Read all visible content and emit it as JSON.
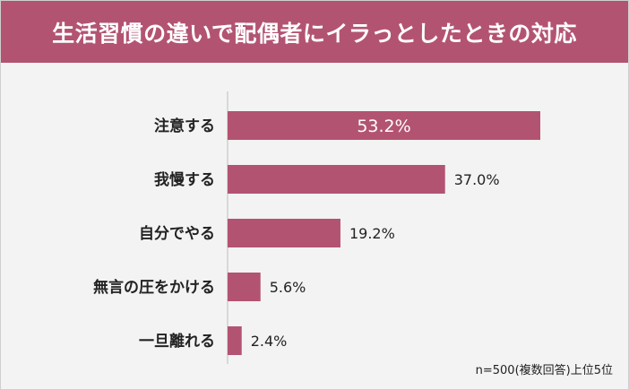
{
  "header": {
    "title": "生活習慣の違いで配偶者にイラっとしたときの対応"
  },
  "note": "n=500(複数回答)上位5位",
  "colors": {
    "bar": "#b35372",
    "header": "#b35372",
    "background": "#f3f3f3"
  },
  "chart_data": {
    "type": "bar",
    "orientation": "horizontal",
    "title": "生活習慣の違いで配偶者にイラっとしたときの対応",
    "categories": [
      "注意する",
      "我慢する",
      "自分でやる",
      "無言の圧をかける",
      "一旦離れる"
    ],
    "values": [
      53.2,
      37.0,
      19.2,
      5.6,
      2.4
    ],
    "value_labels": [
      "53.2%",
      "37.0%",
      "19.2%",
      "5.6%",
      "2.4%"
    ],
    "unit": "%",
    "xlim": [
      0,
      60
    ],
    "grid": false,
    "legend": "none"
  }
}
